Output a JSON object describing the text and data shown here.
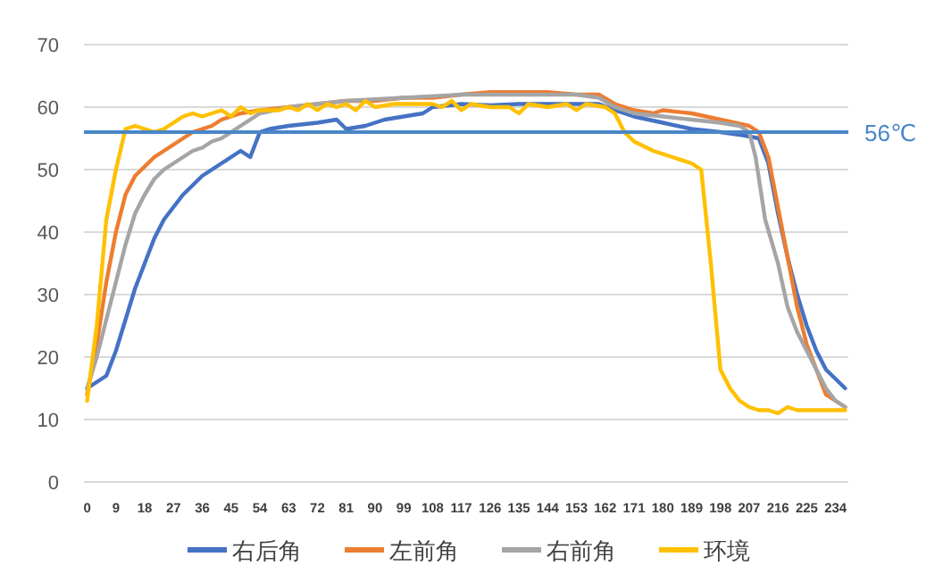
{
  "chart_data": {
    "type": "line",
    "xlim": [
      -1,
      238
    ],
    "xticks": [
      0,
      9,
      18,
      27,
      36,
      45,
      54,
      63,
      72,
      81,
      90,
      99,
      108,
      117,
      126,
      135,
      144,
      153,
      162,
      171,
      180,
      189,
      198,
      207,
      216,
      225,
      234
    ],
    "ylim": [
      0,
      70
    ],
    "yticks": [
      0,
      10,
      20,
      30,
      40,
      50,
      60,
      70
    ],
    "grid": "y",
    "legend": "bottom",
    "marker": "none",
    "line_style": "solid",
    "ref_lines": [
      {
        "axis": "y",
        "value": 56,
        "label": "56℃",
        "color": "#4a86c8"
      }
    ],
    "series": [
      {
        "name": "右后角",
        "color": "#4472c4",
        "x": [
          0,
          6,
          9,
          12,
          15,
          18,
          21,
          24,
          27,
          30,
          33,
          36,
          39,
          42,
          45,
          48,
          51,
          54,
          57,
          63,
          72,
          78,
          81,
          87,
          93,
          99,
          105,
          108,
          117,
          126,
          135,
          144,
          153,
          160,
          165,
          171,
          180,
          189,
          198,
          205,
          210,
          213,
          216,
          219,
          222,
          225,
          228,
          231,
          234,
          237
        ],
        "values": [
          15,
          17,
          21,
          26,
          31,
          35,
          39,
          42,
          44,
          46,
          47.5,
          49,
          50,
          51,
          52,
          53,
          52,
          56,
          56.5,
          57,
          57.5,
          58,
          56.5,
          57,
          58,
          58.5,
          59,
          60,
          60.5,
          60.3,
          60.5,
          60.5,
          60.5,
          60.5,
          59.5,
          58.5,
          57.5,
          56.5,
          56,
          55.5,
          55,
          51,
          43,
          36,
          30,
          25,
          21,
          18,
          16.5,
          15
        ]
      },
      {
        "name": "左前角",
        "color": "#ed7d31",
        "x": [
          0,
          3,
          6,
          9,
          12,
          15,
          18,
          21,
          24,
          27,
          30,
          33,
          36,
          39,
          42,
          45,
          48,
          54,
          63,
          72,
          81,
          90,
          99,
          108,
          117,
          126,
          135,
          144,
          153,
          160,
          165,
          171,
          177,
          180,
          189,
          198,
          207,
          210,
          213,
          216,
          219,
          222,
          225,
          228,
          231,
          234,
          237
        ],
        "values": [
          14,
          22,
          32,
          40,
          46,
          49,
          50.5,
          52,
          53,
          54,
          55,
          56,
          56.5,
          57,
          58,
          58.5,
          59,
          59.5,
          60,
          60.5,
          61,
          61,
          61.5,
          61.5,
          62,
          62.4,
          62.4,
          62.4,
          62,
          62,
          60.5,
          59.5,
          59,
          59.5,
          59,
          58,
          57,
          56,
          52,
          44,
          36,
          28,
          22,
          18,
          14,
          13,
          12
        ]
      },
      {
        "name": "右前角",
        "color": "#a5a5a5",
        "x": [
          0,
          3,
          6,
          9,
          12,
          15,
          18,
          21,
          24,
          27,
          30,
          33,
          36,
          39,
          42,
          45,
          48,
          51,
          54,
          63,
          72,
          81,
          99,
          117,
          135,
          153,
          160,
          165,
          171,
          180,
          189,
          198,
          204,
          207,
          209,
          212,
          216,
          219,
          222,
          225,
          228,
          231,
          234,
          237
        ],
        "values": [
          15,
          20,
          26,
          32,
          38,
          43,
          46,
          48.5,
          50,
          51,
          52,
          53,
          53.5,
          54.5,
          55,
          56,
          57,
          58,
          59,
          60,
          60.5,
          61,
          61.5,
          62,
          62,
          62,
          61.5,
          60,
          59,
          58.5,
          58,
          57.5,
          57,
          56,
          52,
          42,
          35,
          28,
          24,
          21,
          18,
          15,
          13,
          12
        ]
      },
      {
        "name": "环境",
        "color": "#ffc000",
        "x": [
          0,
          3,
          6,
          9,
          12,
          15,
          18,
          21,
          24,
          27,
          30,
          33,
          36,
          39,
          42,
          45,
          48,
          51,
          54,
          57,
          60,
          63,
          66,
          69,
          72,
          75,
          78,
          81,
          84,
          87,
          90,
          96,
          102,
          108,
          111,
          114,
          117,
          120,
          126,
          132,
          135,
          138,
          144,
          150,
          153,
          156,
          162,
          165,
          168,
          171,
          177,
          183,
          189,
          192,
          195,
          198,
          201,
          204,
          207,
          210,
          213,
          216,
          219,
          222,
          225,
          237
        ],
        "values": [
          13,
          25,
          42,
          50,
          56.5,
          57,
          56.5,
          56,
          56.5,
          57.5,
          58.5,
          59,
          58.5,
          59,
          59.5,
          58.5,
          60,
          59,
          59.5,
          59.5,
          59.5,
          60,
          59.5,
          60.5,
          59.5,
          60.5,
          60,
          60.5,
          59.5,
          61,
          60,
          60.5,
          60.5,
          60.5,
          60,
          61,
          59.5,
          60.5,
          60,
          60,
          59,
          60.5,
          60,
          60.5,
          59.5,
          60.5,
          60,
          59,
          56,
          54.5,
          53,
          52,
          51,
          50,
          35,
          18,
          15,
          13,
          12,
          11.5,
          11.5,
          11,
          12,
          11.5,
          11.5,
          11.5
        ]
      }
    ]
  }
}
